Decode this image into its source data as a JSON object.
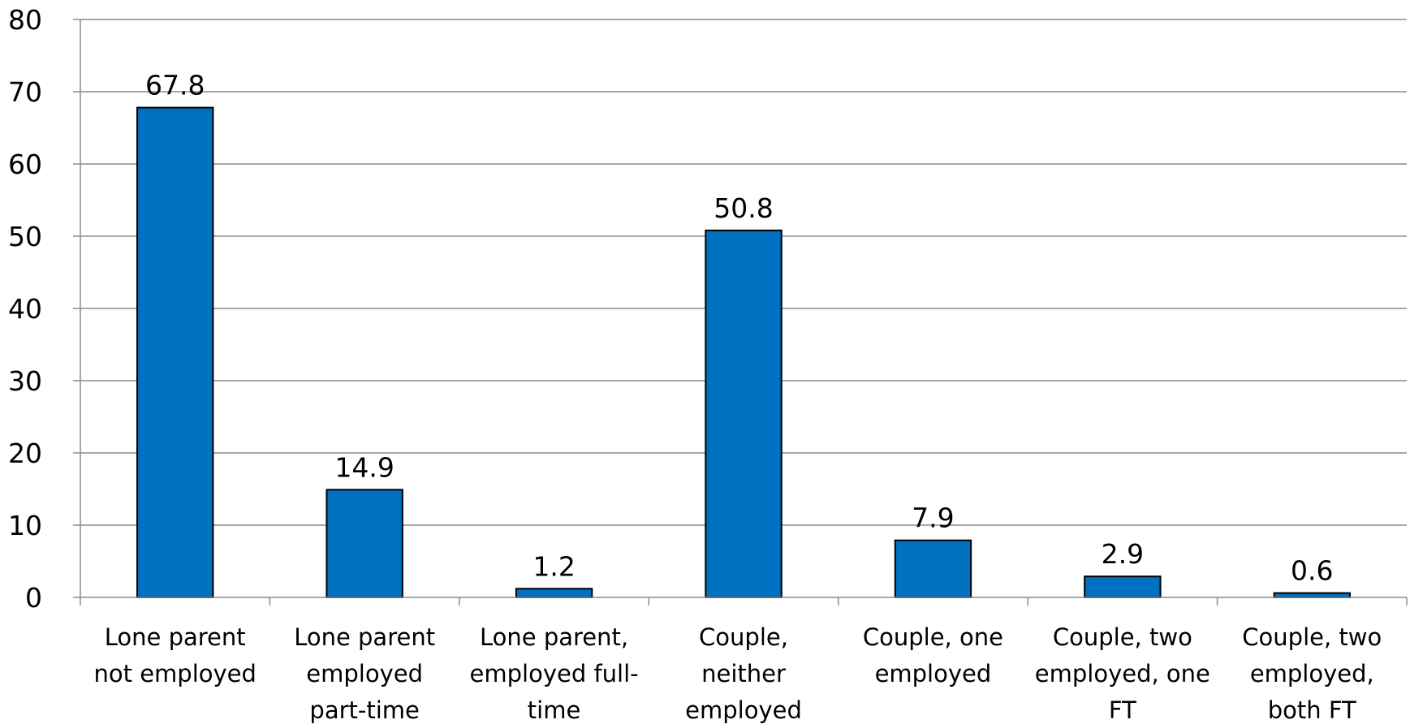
{
  "chart_data": {
    "type": "bar",
    "categories": [
      [
        "Lone parent",
        "not employed"
      ],
      [
        "Lone parent",
        "employed",
        "part-time"
      ],
      [
        "Lone parent,",
        "employed full-",
        "time"
      ],
      [
        "Couple,",
        "neither",
        "employed"
      ],
      [
        "Couple, one",
        "employed"
      ],
      [
        "Couple, two",
        "employed, one",
        "FT"
      ],
      [
        "Couple, two",
        "employed,",
        "both FT"
      ]
    ],
    "values": [
      67.8,
      14.9,
      1.2,
      50.8,
      7.9,
      2.9,
      0.6
    ],
    "data_labels": [
      "67.8",
      "14.9",
      "1.2",
      "50.8",
      "7.9",
      "2.9",
      "0.6"
    ],
    "yticks": [
      0,
      10,
      20,
      30,
      40,
      50,
      60,
      70,
      80
    ],
    "ylim": [
      0,
      80
    ],
    "title": "",
    "xlabel": "",
    "ylabel": "",
    "grid": true,
    "legend": "none",
    "bar_color": "#0070C0",
    "grid_color": "#8C8C8C"
  }
}
